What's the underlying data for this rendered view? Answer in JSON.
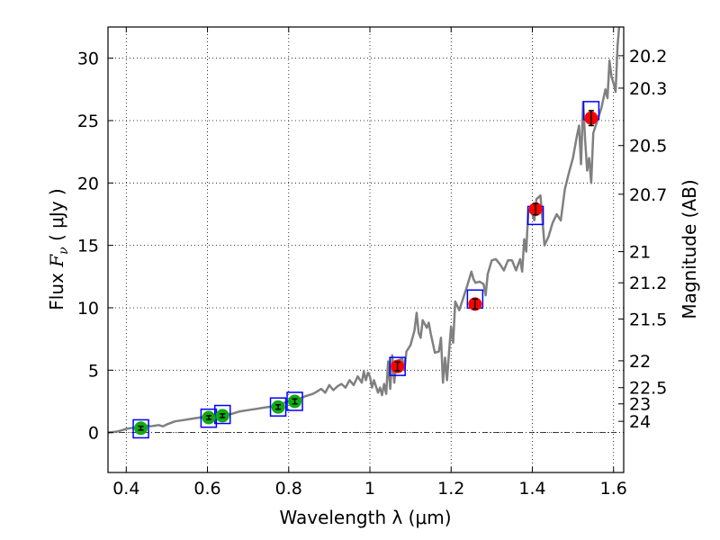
{
  "chart_data": {
    "type": "scatter",
    "xlabel": "Wavelength  λ (μm)",
    "ylabel": "Flux  Fν  ( μJy )",
    "ylabel_parts": {
      "pre": "Flux  ",
      "var": "F",
      "sub": "ν",
      "post": "  ( μJy )"
    },
    "y2label": "Magnitude (AB)",
    "xlim": [
      0.355,
      1.625
    ],
    "ylim": [
      -3.2,
      32.5
    ],
    "grid": true,
    "x_ticks": [
      0.4,
      0.6,
      0.8,
      1.0,
      1.2,
      1.4,
      1.6
    ],
    "x_tick_labels": [
      "0.4",
      "0.6",
      "0.8",
      "1",
      "1.2",
      "1.4",
      "1.6"
    ],
    "y_ticks": [
      0,
      5,
      10,
      15,
      20,
      25,
      30
    ],
    "y_tick_labels": [
      "0",
      "5",
      "10",
      "15",
      "20",
      "25",
      "30"
    ],
    "mag_ticks": [
      {
        "label": "20.2",
        "flux": 30.2
      },
      {
        "label": "20.3",
        "flux": 27.6
      },
      {
        "label": "20.5",
        "flux": 23.0
      },
      {
        "label": "20.7",
        "flux": 19.1
      },
      {
        "label": "21",
        "flux": 14.5
      },
      {
        "label": "21.2",
        "flux": 12.0
      },
      {
        "label": "21.5",
        "flux": 9.1
      },
      {
        "label": "22",
        "flux": 5.75
      },
      {
        "label": "22.5",
        "flux": 3.6
      },
      {
        "label": "23",
        "flux": 2.3
      },
      {
        "label": "24",
        "flux": 0.9
      }
    ],
    "series": [
      {
        "kind": "line",
        "color": "#808080",
        "x": [
          0.355,
          0.37,
          0.38,
          0.39,
          0.4,
          0.41,
          0.42,
          0.43,
          0.44,
          0.45,
          0.46,
          0.47,
          0.48,
          0.49,
          0.5,
          0.52,
          0.54,
          0.56,
          0.58,
          0.6,
          0.62,
          0.64,
          0.66,
          0.68,
          0.7,
          0.72,
          0.74,
          0.76,
          0.78,
          0.8,
          0.82,
          0.84,
          0.86,
          0.87,
          0.88,
          0.89,
          0.9,
          0.91,
          0.92,
          0.93,
          0.94,
          0.95,
          0.96,
          0.97,
          0.98,
          0.985,
          0.99,
          0.995,
          1.0,
          1.005,
          1.01,
          1.02,
          1.025,
          1.03,
          1.035,
          1.04,
          1.045,
          1.05,
          1.055,
          1.06,
          1.065,
          1.07,
          1.08,
          1.085,
          1.09,
          1.1,
          1.11,
          1.115,
          1.12,
          1.125,
          1.13,
          1.14,
          1.145,
          1.15,
          1.16,
          1.17,
          1.175,
          1.18,
          1.185,
          1.19,
          1.195,
          1.2,
          1.205,
          1.21,
          1.22,
          1.23,
          1.24,
          1.25,
          1.255,
          1.26,
          1.27,
          1.28,
          1.285,
          1.29,
          1.3,
          1.31,
          1.32,
          1.33,
          1.34,
          1.35,
          1.36,
          1.37,
          1.375,
          1.38,
          1.385,
          1.39,
          1.4,
          1.405,
          1.41,
          1.42,
          1.43,
          1.44,
          1.45,
          1.46,
          1.47,
          1.48,
          1.49,
          1.5,
          1.51,
          1.515,
          1.52,
          1.525,
          1.53,
          1.535,
          1.54,
          1.545,
          1.55,
          1.56,
          1.57,
          1.58,
          1.585,
          1.59,
          1.595,
          1.6,
          1.605,
          1.61,
          1.615
        ],
        "y": [
          0.0,
          0.05,
          0.1,
          0.2,
          0.3,
          0.35,
          0.4,
          0.45,
          0.5,
          0.55,
          0.5,
          0.55,
          0.6,
          0.5,
          0.65,
          0.9,
          1.0,
          1.1,
          1.2,
          1.3,
          1.35,
          1.4,
          1.5,
          1.7,
          1.8,
          1.9,
          2.0,
          2.1,
          2.3,
          2.5,
          2.6,
          2.9,
          3.1,
          3.3,
          3.5,
          3.2,
          3.8,
          3.4,
          3.7,
          3.9,
          3.6,
          4.2,
          3.8,
          4.5,
          4.0,
          4.9,
          4.2,
          4.8,
          4.5,
          3.6,
          4.2,
          3.2,
          3.6,
          3.0,
          3.9,
          3.1,
          5.7,
          3.5,
          6.2,
          4.0,
          5.6,
          5.8,
          5.9,
          5.0,
          6.5,
          7.0,
          8.2,
          9.6,
          8.0,
          7.6,
          9.0,
          8.4,
          8.8,
          7.9,
          6.4,
          6.5,
          7.6,
          4.0,
          6.0,
          4.2,
          6.5,
          8.5,
          7.2,
          10.5,
          9.8,
          10.8,
          11.8,
          12.9,
          12.3,
          12.0,
          12.1,
          11.9,
          11.0,
          12.7,
          13.8,
          13.9,
          13.5,
          13.0,
          13.8,
          13.8,
          13.0,
          13.9,
          12.9,
          15.5,
          14.5,
          17.8,
          17.5,
          17.0,
          18.7,
          19.0,
          15.0,
          15.7,
          16.8,
          17.5,
          17.0,
          19.5,
          20.8,
          22.0,
          23.8,
          24.6,
          21.5,
          26.5,
          23.5,
          21.0,
          22.0,
          20.0,
          24.0,
          25.0,
          26.0,
          27.5,
          26.8,
          29.8,
          28.5,
          28.0,
          27.3,
          31.0,
          33.0
        ]
      },
      {
        "kind": "model-boxes",
        "marker": "square",
        "color": "#0000ff",
        "x": [
          0.436,
          0.603,
          0.637,
          0.774,
          0.815,
          1.068,
          1.259,
          1.408,
          1.545
        ],
        "y": [
          0.3,
          1.15,
          1.45,
          2.05,
          2.5,
          5.3,
          10.7,
          17.4,
          25.8
        ]
      },
      {
        "kind": "observed-optical",
        "marker": "circle",
        "color": "#11aa11",
        "x": [
          0.436,
          0.603,
          0.637,
          0.774,
          0.815
        ],
        "y": [
          0.35,
          1.2,
          1.35,
          2.05,
          2.5
        ],
        "yerr": [
          0.15,
          0.15,
          0.15,
          0.18,
          0.2
        ]
      },
      {
        "kind": "observed-nir",
        "marker": "circle",
        "color": "#ff0000",
        "x": [
          1.068,
          1.259,
          1.408,
          1.545
        ],
        "y": [
          5.3,
          10.3,
          17.9,
          25.2
        ],
        "yerr": [
          0.35,
          0.4,
          0.45,
          0.6
        ]
      }
    ]
  }
}
